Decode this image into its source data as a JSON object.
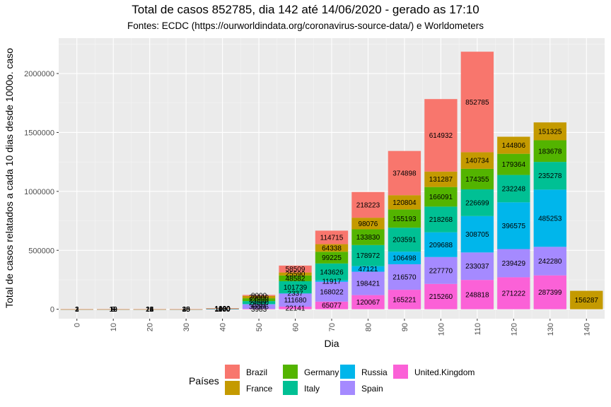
{
  "chart_data": {
    "type": "bar",
    "stacked": true,
    "title": "Total de casos 852785, dia 142 até 14/06/2020 - gerado as 17:10",
    "subtitle": "Fontes: ECDC (https://ourworldindata.org/coronavirus-source-data/) e Worldometers",
    "xlabel": "Dia",
    "ylabel": "Total de casos relatados a cada 10 dias desde 1000o. caso",
    "xlim": [
      -5,
      145
    ],
    "ylim": [
      -80000,
      2300000
    ],
    "x_ticks": [
      "0",
      "10",
      "20",
      "30",
      "40",
      "50",
      "60",
      "70",
      "80",
      "90",
      "100",
      "110",
      "120",
      "130",
      "140"
    ],
    "y_ticks": [
      "0",
      "500000",
      "1000000",
      "1500000",
      "2000000"
    ],
    "grid": true,
    "legend_title": "Países",
    "legend_position": "bottom",
    "stack_order": [
      "United.Kingdom",
      "Spain",
      "Russia",
      "Italy",
      "Germany",
      "France",
      "Brazil"
    ],
    "x": [
      0,
      10,
      20,
      30,
      40,
      50,
      60,
      70,
      80,
      90,
      100,
      110,
      120,
      130,
      140
    ],
    "series": [
      {
        "name": "Brazil",
        "color": "#F8766D",
        "values": [
          1,
          8,
          14,
          25,
          1000,
          8000,
          58509,
          114715,
          218223,
          374898,
          614932,
          852785,
          null,
          null,
          null
        ]
      },
      {
        "name": "France",
        "color": "#C49A00",
        "values": [
          2,
          12,
          24,
          45,
          1480,
          20000,
          25590,
          64338,
          98076,
          120804,
          131287,
          140734,
          144806,
          151325,
          156287
        ]
      },
      {
        "name": "Germany",
        "color": "#53B400",
        "values": [
          1,
          18,
          22,
          35,
          1020,
          24000,
          48582,
          99225,
          133830,
          155193,
          166091,
          174355,
          179364,
          183678,
          null
        ]
      },
      {
        "name": "Italy",
        "color": "#00C094",
        "values": [
          3,
          10,
          18,
          30,
          1100,
          24560,
          101739,
          143626,
          178972,
          203591,
          218268,
          226699,
          232248,
          235278,
          null
        ]
      },
      {
        "name": "Russia",
        "color": "#00B6EB",
        "values": [
          1,
          8,
          12,
          20,
          1000,
          2337,
          2337,
          11917,
          47121,
          106498,
          209688,
          308705,
          396575,
          485253,
          null
        ]
      },
      {
        "name": "Spain",
        "color": "#A58AFF",
        "values": [
          2,
          10,
          16,
          28,
          1400,
          38386,
          111680,
          168022,
          198421,
          216570,
          227770,
          233037,
          239429,
          242280,
          null
        ]
      },
      {
        "name": "United.Kingdom",
        "color": "#FB61D7",
        "values": [
          1,
          9,
          15,
          26,
          1100,
          3983,
          22141,
          65077,
          120067,
          165221,
          215260,
          248818,
          271222,
          287399,
          null
        ]
      }
    ]
  }
}
